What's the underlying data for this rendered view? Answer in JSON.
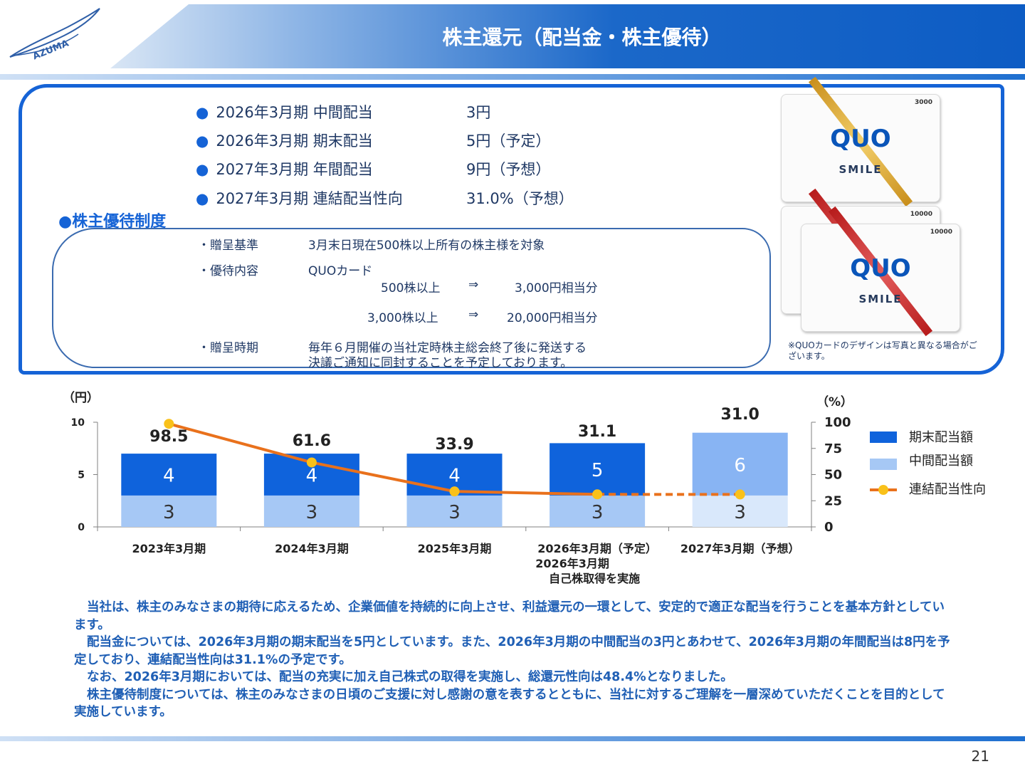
{
  "header": {
    "title": "株主還元（配当金・株主優待）",
    "logo_text": "AZUMA"
  },
  "dividends": [
    {
      "label": "2026年3月期 中間配当",
      "value": "3円"
    },
    {
      "label": "2026年3月期 期末配当",
      "value": "5円（予定）"
    },
    {
      "label": "2027年3月期 年間配当",
      "value": "9円（予想）"
    },
    {
      "label": "2027年3月期 連結配当性向",
      "value": "31.0%（予想）"
    }
  ],
  "yutai": {
    "heading": "●株主優待制度",
    "kijun_label": "・贈呈基準",
    "kijun_value": "3月末日現在500株以上所有の株主様を対象",
    "naiyo_label": "・優待内容",
    "naiyo_value": "QUOカード",
    "tier1_shares": "500株以上",
    "tier1_arrow": "⇒",
    "tier1_amount": "3,000円相当分",
    "tier2_shares": "3,000株以上",
    "tier2_arrow": "⇒",
    "tier2_amount": "20,000円相当分",
    "jiki_label": "・贈呈時期",
    "jiki_line1": "毎年６月開催の当社定時株主総会終了後に発送する",
    "jiki_line2": "決議ご通知に同封することを予定しております。"
  },
  "quo_cards": {
    "brand": "QUO",
    "sub": "SMILE",
    "values": [
      "3000",
      "10000",
      "10000"
    ],
    "note": "※QUOカードのデザインは写真と異なる場合がございます。"
  },
  "chart_data": {
    "type": "bar",
    "categories": [
      "2023年3月期",
      "2024年3月期",
      "2025年3月期",
      "2026年3月期（予定）",
      "2027年3月期（予想）"
    ],
    "sub_labels": [
      "",
      "",
      "",
      "2026年3月期",
      ""
    ],
    "sub_labels2": [
      "",
      "",
      "",
      "自己株取得を実施",
      ""
    ],
    "series": [
      {
        "name": "中間配当額",
        "values": [
          3,
          3,
          3,
          3,
          3
        ],
        "colors": [
          "#a6c8f5",
          "#a6c8f5",
          "#a6c8f5",
          "#a6c8f5",
          "#d9e8fb"
        ]
      },
      {
        "name": "期末配当額",
        "values": [
          4,
          4,
          4,
          5,
          6
        ],
        "colors": [
          "#0f63dc",
          "#0f63dc",
          "#0f63dc",
          "#0f63dc",
          "#88b4f3"
        ]
      }
    ],
    "payout": {
      "name": "連結配当性向",
      "values": [
        98.5,
        61.6,
        33.9,
        31.1,
        31.0
      ],
      "labels": [
        "98.5",
        "61.6",
        "33.9",
        "31.1",
        "31.0"
      ]
    },
    "ylabel_left": "（円）",
    "ylabel_right": "（%）",
    "ylim_left": [
      0,
      10
    ],
    "yticks_left": [
      "0",
      "5",
      "10"
    ],
    "ylim_right": [
      0,
      100
    ],
    "yticks_right": [
      "0",
      "25",
      "50",
      "75",
      "100"
    ],
    "line_color": "#e9711c",
    "marker_color": "#f9c11a",
    "legend_position": "right"
  },
  "paragraphs": [
    "当社は、株主のみなさまの期待に応えるため、企業価値を持続的に向上させ、利益還元の一環として、安定的で適正な配当を行うことを基本方針としています。",
    "配当金については、2026年3月期の期末配当を5円としています。また、2026年3月期の中間配当の3円とあわせて、2026年3月期の年間配当は8円を予定しており、連結配当性向は31.1%の予定です。",
    "なお、2026年3月期においては、配当の充実に加え自己株式の取得を実施し、総還元性向は48.4%となりました。",
    "株主優待制度については、株主のみなさまの日頃のご支援に対し感謝の意を表するとともに、当社に対するご理解を一層深めていただくことを目的として実施しています。"
  ],
  "page_number": "21"
}
